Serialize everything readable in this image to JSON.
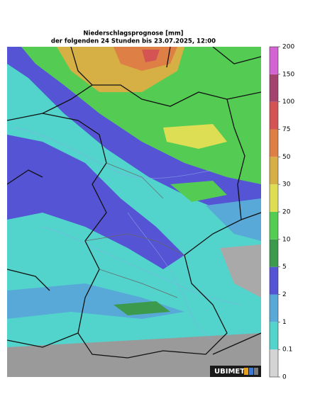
{
  "header": {
    "title": "Niederschlagsprognose [mm]",
    "subtitle": "der folgenden 24 Stunden bis 23.07.2025, 12:00"
  },
  "colorbar": {
    "ticks": [
      0,
      0.1,
      1,
      2,
      5,
      10,
      20,
      30,
      50,
      75,
      100,
      150,
      200
    ],
    "colors": [
      "#d4d4d4",
      "#52d4cc",
      "#58a8d8",
      "#5454d4",
      "#3c9a4c",
      "#54cc54",
      "#dede54",
      "#d6b044",
      "#de8046",
      "#d45454",
      "#a4446e",
      "#d464d4"
    ]
  },
  "logo": {
    "text": "UBIMET"
  }
}
